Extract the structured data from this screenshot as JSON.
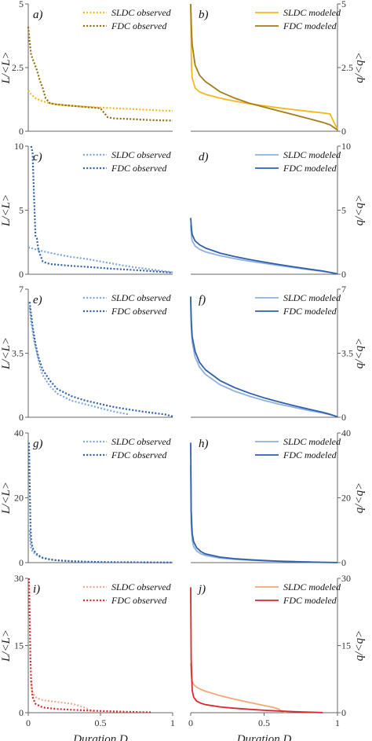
{
  "chart_data": [
    {
      "type": "line",
      "panel": "a)",
      "ylabel": "L/<L>",
      "ylim": [
        0,
        5
      ],
      "yticks": [
        "0",
        "2.5",
        "5"
      ],
      "xlim": [
        0,
        1
      ],
      "series": [
        {
          "name": "SLDC observed",
          "color": "#f2b81c",
          "dash": "dotted",
          "x": [
            0,
            0.02,
            0.05,
            0.1,
            0.15,
            0.2,
            0.3,
            0.4,
            0.5,
            0.6,
            0.7,
            0.8,
            0.9,
            1.0
          ],
          "y": [
            1.6,
            1.45,
            1.3,
            1.18,
            1.1,
            1.05,
            1.0,
            0.96,
            0.93,
            0.9,
            0.88,
            0.85,
            0.82,
            0.8
          ]
        },
        {
          "name": "FDC observed",
          "color": "#8b6c12",
          "dash": "dotted",
          "x": [
            0,
            0.01,
            0.02,
            0.04,
            0.06,
            0.08,
            0.1,
            0.12,
            0.15,
            0.2,
            0.3,
            0.4,
            0.5,
            0.55,
            0.6,
            0.7,
            0.8,
            0.9,
            1.0
          ],
          "y": [
            4.1,
            3.5,
            3.0,
            2.7,
            2.4,
            2.0,
            1.7,
            1.3,
            1.1,
            1.05,
            1.0,
            0.95,
            0.9,
            0.55,
            0.5,
            0.48,
            0.45,
            0.43,
            0.42
          ]
        }
      ]
    },
    {
      "type": "line",
      "panel": "b)",
      "ylabel": "q/<q>",
      "ylim": [
        0,
        5
      ],
      "yticks": [
        "0",
        "2.5",
        "5"
      ],
      "xlim": [
        0,
        1
      ],
      "series": [
        {
          "name": "SLDC modeled",
          "color": "#f2b81c",
          "dash": "solid",
          "x": [
            0,
            0.005,
            0.01,
            0.03,
            0.06,
            0.1,
            0.2,
            0.3,
            0.4,
            0.5,
            0.6,
            0.7,
            0.8,
            0.9,
            0.95,
            0.98,
            1.0
          ],
          "y": [
            5.0,
            2.6,
            2.1,
            1.7,
            1.55,
            1.45,
            1.3,
            1.18,
            1.08,
            1.0,
            0.92,
            0.85,
            0.78,
            0.72,
            0.68,
            0.3,
            0.1
          ]
        },
        {
          "name": "FDC modeled",
          "color": "#a27d18",
          "dash": "solid",
          "x": [
            0,
            0.005,
            0.01,
            0.03,
            0.06,
            0.1,
            0.2,
            0.3,
            0.4,
            0.5,
            0.6,
            0.7,
            0.8,
            0.9,
            0.95,
            1.0
          ],
          "y": [
            5.0,
            4.0,
            3.4,
            2.6,
            2.2,
            1.95,
            1.55,
            1.3,
            1.1,
            0.95,
            0.8,
            0.65,
            0.5,
            0.35,
            0.25,
            0.05
          ]
        }
      ]
    },
    {
      "type": "line",
      "panel": "c)",
      "ylabel": "L/<L>",
      "ylim": [
        0,
        10
      ],
      "yticks": [
        "0",
        "5",
        "10"
      ],
      "xlim": [
        0,
        1
      ],
      "series": [
        {
          "name": "SLDC observed",
          "color": "#7ea6dc",
          "dash": "dotted",
          "x": [
            0,
            0.05,
            0.1,
            0.2,
            0.3,
            0.4,
            0.5,
            0.6,
            0.7,
            0.8,
            0.9,
            1.0
          ],
          "y": [
            2.1,
            1.95,
            1.8,
            1.55,
            1.35,
            1.2,
            1.0,
            0.8,
            0.6,
            0.45,
            0.3,
            0.15
          ]
        },
        {
          "name": "FDC observed",
          "color": "#2f5fa8",
          "dash": "dotted",
          "x": [
            0.02,
            0.03,
            0.04,
            0.05,
            0.06,
            0.07,
            0.08,
            0.1,
            0.12,
            0.15,
            0.2,
            0.3,
            0.4,
            0.5,
            0.6,
            0.7,
            0.8,
            0.9,
            1.0
          ],
          "y": [
            10.0,
            9.5,
            6.0,
            3.0,
            2.8,
            1.9,
            1.6,
            1.0,
            0.9,
            0.8,
            0.75,
            0.65,
            0.58,
            0.5,
            0.42,
            0.35,
            0.28,
            0.2,
            0.12
          ]
        }
      ]
    },
    {
      "type": "line",
      "panel": "d)",
      "ylabel": "q/<q>",
      "ylim": [
        0,
        10
      ],
      "yticks": [
        "0",
        "5",
        "10"
      ],
      "xlim": [
        0,
        1
      ],
      "series": [
        {
          "name": "SLDC modeled",
          "color": "#8fb0de",
          "dash": "solid",
          "x": [
            0,
            0.005,
            0.01,
            0.03,
            0.06,
            0.1,
            0.2,
            0.3,
            0.4,
            0.5,
            0.6,
            0.7,
            0.8,
            0.9,
            0.95,
            1.0
          ],
          "y": [
            3.8,
            3.0,
            2.6,
            2.2,
            1.95,
            1.75,
            1.45,
            1.22,
            1.02,
            0.85,
            0.68,
            0.52,
            0.37,
            0.22,
            0.14,
            0.03
          ]
        },
        {
          "name": "FDC modeled",
          "color": "#2f5fa8",
          "dash": "solid",
          "x": [
            0,
            0.005,
            0.01,
            0.03,
            0.06,
            0.1,
            0.2,
            0.3,
            0.4,
            0.5,
            0.6,
            0.7,
            0.8,
            0.9,
            0.95,
            1.0
          ],
          "y": [
            4.4,
            3.6,
            3.1,
            2.6,
            2.3,
            2.05,
            1.65,
            1.38,
            1.15,
            0.95,
            0.76,
            0.58,
            0.41,
            0.25,
            0.15,
            0.03
          ]
        }
      ]
    },
    {
      "type": "line",
      "panel": "e)",
      "ylabel": "L/<L>",
      "ylim": [
        0,
        7
      ],
      "yticks": [
        "0",
        "3.5",
        "7"
      ],
      "xlim": [
        0,
        1
      ],
      "series": [
        {
          "name": "SLDC observed",
          "color": "#7ea6dc",
          "dash": "dotted",
          "x": [
            0.01,
            0.02,
            0.04,
            0.06,
            0.08,
            0.1,
            0.15,
            0.2,
            0.3,
            0.4,
            0.5,
            0.6,
            0.7
          ],
          "y": [
            6.0,
            5.2,
            4.2,
            3.5,
            2.8,
            2.3,
            1.7,
            1.3,
            0.9,
            0.7,
            0.5,
            0.3,
            0.15
          ]
        },
        {
          "name": "FDC observed",
          "color": "#2f5fa8",
          "dash": "dotted",
          "x": [
            0.01,
            0.02,
            0.03,
            0.05,
            0.07,
            0.1,
            0.15,
            0.2,
            0.3,
            0.4,
            0.5,
            0.6,
            0.7,
            0.8,
            0.9,
            0.95,
            1.0
          ],
          "y": [
            6.3,
            5.6,
            5.0,
            4.0,
            3.3,
            2.6,
            2.0,
            1.55,
            1.15,
            0.9,
            0.72,
            0.55,
            0.42,
            0.3,
            0.2,
            0.15,
            0.05
          ]
        }
      ]
    },
    {
      "type": "line",
      "panel": "f)",
      "ylabel": "q/<q>",
      "ylim": [
        0,
        7
      ],
      "yticks": [
        "0",
        "3.5",
        "7"
      ],
      "xlim": [
        0,
        1
      ],
      "series": [
        {
          "name": "SLDC modeled",
          "color": "#8fb0de",
          "dash": "solid",
          "x": [
            0,
            0.003,
            0.01,
            0.03,
            0.06,
            0.1,
            0.2,
            0.3,
            0.4,
            0.5,
            0.6,
            0.7,
            0.8,
            0.9,
            0.95,
            1.0
          ],
          "y": [
            6.4,
            5.0,
            4.1,
            3.3,
            2.75,
            2.35,
            1.78,
            1.42,
            1.15,
            0.92,
            0.72,
            0.55,
            0.38,
            0.23,
            0.14,
            0.03
          ]
        },
        {
          "name": "FDC modeled",
          "color": "#2f5fa8",
          "dash": "solid",
          "x": [
            0,
            0.003,
            0.01,
            0.03,
            0.06,
            0.1,
            0.2,
            0.3,
            0.4,
            0.5,
            0.6,
            0.7,
            0.8,
            0.9,
            0.95,
            1.0
          ],
          "y": [
            6.6,
            5.4,
            4.4,
            3.6,
            3.0,
            2.6,
            2.0,
            1.62,
            1.32,
            1.06,
            0.84,
            0.64,
            0.45,
            0.27,
            0.16,
            0.03
          ]
        }
      ]
    },
    {
      "type": "line",
      "panel": "g)",
      "ylabel": "L/<L>",
      "ylim": [
        0,
        40
      ],
      "yticks": [
        "0",
        "20",
        "40"
      ],
      "xlim": [
        0,
        1
      ],
      "series": [
        {
          "name": "SLDC observed",
          "color": "#7ea6dc",
          "dash": "dotted",
          "x": [
            0.01,
            0.015,
            0.02,
            0.03,
            0.05,
            0.08,
            0.1,
            0.15,
            0.2,
            0.3,
            0.4,
            0.5
          ],
          "y": [
            10.0,
            6.0,
            4.5,
            3.5,
            2.5,
            1.8,
            1.4,
            1.0,
            0.7,
            0.4,
            0.2,
            0.1
          ]
        },
        {
          "name": "FDC observed",
          "color": "#2f5fa8",
          "dash": "dotted",
          "x": [
            0.005,
            0.01,
            0.015,
            0.02,
            0.03,
            0.05,
            0.08,
            0.1,
            0.15,
            0.2,
            0.3,
            0.4,
            0.5,
            0.6,
            0.8,
            1.0
          ],
          "y": [
            37.0,
            25.0,
            12.0,
            7.0,
            4.5,
            3.0,
            2.0,
            1.5,
            1.0,
            0.7,
            0.45,
            0.3,
            0.2,
            0.15,
            0.1,
            0.05
          ]
        }
      ]
    },
    {
      "type": "line",
      "panel": "h)",
      "ylabel": "q/<q>",
      "ylim": [
        0,
        40
      ],
      "yticks": [
        "0",
        "20",
        "40"
      ],
      "xlim": [
        0,
        1
      ],
      "series": [
        {
          "name": "SLDC modeled",
          "color": "#8fb0de",
          "dash": "solid",
          "x": [
            0,
            0.003,
            0.01,
            0.02,
            0.04,
            0.07,
            0.1,
            0.2,
            0.3,
            0.4,
            0.5,
            0.6,
            0.7,
            0.8,
            0.9,
            1.0
          ],
          "y": [
            30.0,
            12.0,
            7.0,
            5.0,
            3.6,
            2.7,
            2.2,
            1.4,
            1.0,
            0.75,
            0.55,
            0.4,
            0.28,
            0.18,
            0.1,
            0.02
          ]
        },
        {
          "name": "FDC modeled",
          "color": "#2f5fa8",
          "dash": "solid",
          "x": [
            0,
            0.003,
            0.01,
            0.02,
            0.04,
            0.07,
            0.1,
            0.2,
            0.3,
            0.4,
            0.5,
            0.6,
            0.7,
            0.8,
            0.9,
            1.0
          ],
          "y": [
            37.0,
            16.0,
            9.0,
            6.5,
            4.6,
            3.4,
            2.7,
            1.7,
            1.2,
            0.9,
            0.65,
            0.47,
            0.32,
            0.2,
            0.1,
            0.02
          ]
        }
      ]
    },
    {
      "type": "line",
      "panel": "i)",
      "ylabel": "L/<L>",
      "ylim": [
        0,
        30
      ],
      "yticks": [
        "0",
        "15",
        "30"
      ],
      "xlim": [
        0,
        1
      ],
      "series": [
        {
          "name": "SLDC observed",
          "color": "#f0a88a",
          "dash": "dotted",
          "x": [
            0.02,
            0.03,
            0.05,
            0.08,
            0.1,
            0.15,
            0.2,
            0.25,
            0.3,
            0.35,
            0.4,
            0.45
          ],
          "y": [
            7.0,
            4.5,
            3.5,
            3.0,
            2.8,
            2.6,
            2.4,
            2.2,
            2.0,
            1.6,
            1.0,
            0.3
          ]
        },
        {
          "name": "FDC observed",
          "color": "#d8282e",
          "dash": "dotted",
          "x": [
            0.005,
            0.01,
            0.015,
            0.02,
            0.03,
            0.05,
            0.08,
            0.1,
            0.15,
            0.2,
            0.3,
            0.4,
            0.5,
            0.6,
            0.7,
            0.8,
            0.85
          ],
          "y": [
            30.0,
            22.0,
            12.0,
            7.0,
            3.5,
            2.0,
            1.5,
            1.2,
            1.0,
            0.85,
            0.65,
            0.5,
            0.38,
            0.28,
            0.2,
            0.12,
            0.08
          ]
        }
      ]
    },
    {
      "type": "line",
      "panel": "j)",
      "ylabel": "q/<q>",
      "ylim": [
        0,
        30
      ],
      "yticks": [
        "0",
        "15",
        "30"
      ],
      "xlim": [
        0,
        1
      ],
      "series": [
        {
          "name": "SLDC modeled",
          "color": "#f0a878",
          "dash": "solid",
          "x": [
            0,
            0.005,
            0.01,
            0.02,
            0.04,
            0.07,
            0.1,
            0.2,
            0.3,
            0.4,
            0.5,
            0.55,
            0.6,
            0.62,
            0.65
          ],
          "y": [
            11.0,
            8.0,
            7.0,
            6.3,
            5.7,
            5.2,
            4.8,
            3.8,
            3.0,
            2.3,
            1.6,
            1.3,
            0.8,
            0.3,
            0.05
          ]
        },
        {
          "name": "FDC modeled",
          "color": "#d8282e",
          "dash": "solid",
          "x": [
            0,
            0.003,
            0.01,
            0.02,
            0.04,
            0.07,
            0.1,
            0.2,
            0.3,
            0.4,
            0.5,
            0.6,
            0.7,
            0.8,
            0.9
          ],
          "y": [
            28.0,
            12.0,
            5.0,
            3.5,
            2.6,
            2.1,
            1.8,
            1.3,
            1.0,
            0.75,
            0.55,
            0.38,
            0.25,
            0.12,
            0.03
          ]
        }
      ]
    }
  ],
  "xaxis": {
    "ticks": [
      "0",
      "0.5",
      "1"
    ],
    "label": "Duration D"
  }
}
